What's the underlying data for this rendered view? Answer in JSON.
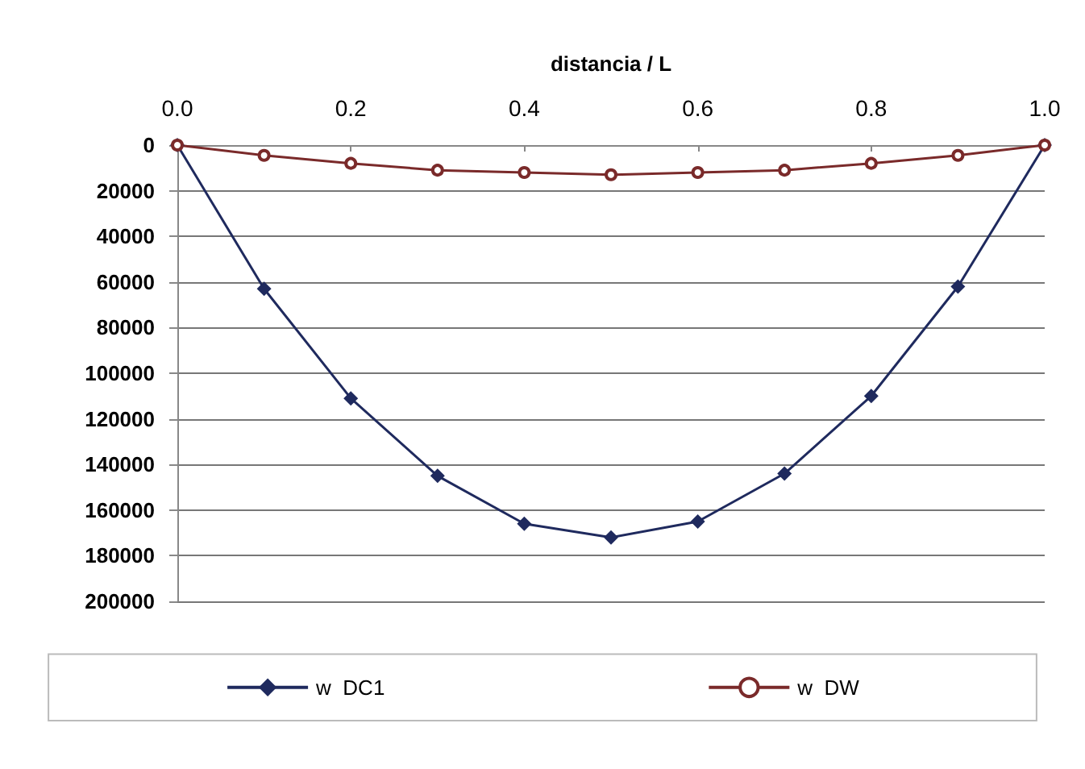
{
  "chart_data": {
    "type": "line",
    "xlabel": "distancia / L",
    "x": [
      0,
      0.1,
      0.2,
      0.3,
      0.4,
      0.5,
      0.6,
      0.7,
      0.8,
      0.9,
      1.0
    ],
    "series": [
      {
        "name": "w  DC1",
        "color": "#1f2a5e",
        "marker": "diamond",
        "values": [
          0,
          63000,
          111000,
          145000,
          166000,
          172000,
          165000,
          144000,
          110000,
          62000,
          0
        ]
      },
      {
        "name": "w  DW",
        "color": "#7a2a2a",
        "marker": "circle",
        "values": [
          0,
          4500,
          8000,
          11000,
          12000,
          13000,
          12000,
          11000,
          8000,
          4500,
          0
        ]
      }
    ],
    "xlim": [
      0,
      1
    ],
    "xticks": [
      {
        "value": 0,
        "label": "0.0"
      },
      {
        "value": 0.2,
        "label": "0.2"
      },
      {
        "value": 0.4,
        "label": "0.4"
      },
      {
        "value": 0.6,
        "label": "0.6"
      },
      {
        "value": 0.8,
        "label": "0.8"
      },
      {
        "value": 1,
        "label": "1.0"
      }
    ],
    "ylim": [
      200000,
      0
    ],
    "yticks": [
      0,
      20000,
      40000,
      60000,
      80000,
      100000,
      120000,
      140000,
      160000,
      180000,
      200000
    ],
    "grid": "y",
    "legend": "bottom"
  }
}
